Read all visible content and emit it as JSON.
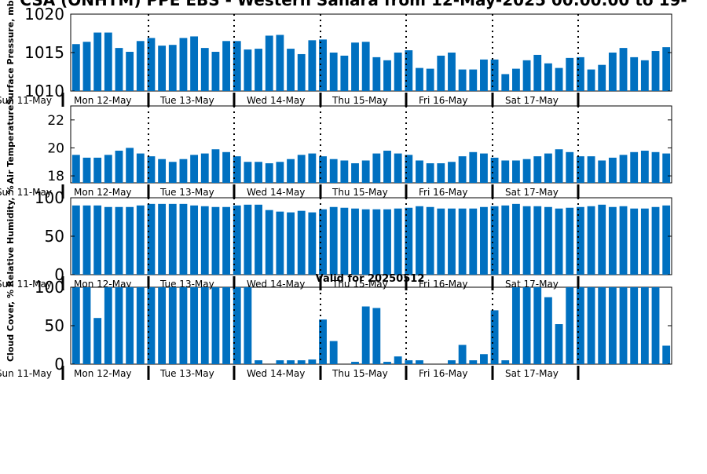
{
  "title": "CSA (ONHTM) PPE EBS  - Western Sahara from 12-May-2025 00:00:00 to 19-",
  "bottom_caption": "Valid for 20250512",
  "day_labels": [
    "Sun 11-May",
    "Mon 12-May",
    "Tue 13-May",
    "Wed 14-May",
    "Thu 15-May",
    "Fri 16-May",
    "Sat 17-May"
  ],
  "colors": {
    "bar": "#0070C0",
    "axis": "#000000",
    "background": "#ffffff"
  },
  "chart_data": [
    {
      "type": "bar",
      "ylabel": "Surface Pressure, mb",
      "ylim": [
        1010,
        1020
      ],
      "yticks": [
        1010,
        1015,
        1020
      ],
      "values": [
        1016.1,
        1016.4,
        1017.6,
        1017.6,
        1015.6,
        1015.1,
        1016.5,
        1016.9,
        1015.9,
        1016.0,
        1016.9,
        1017.1,
        1015.6,
        1015.1,
        1016.5,
        1016.5,
        1015.4,
        1015.5,
        1017.2,
        1017.3,
        1015.5,
        1014.8,
        1016.6,
        1016.7,
        1015.0,
        1014.6,
        1016.3,
        1016.4,
        1014.4,
        1014.0,
        1015.0,
        1015.3,
        1013.0,
        1012.9,
        1014.6,
        1015.0,
        1012.8,
        1012.8,
        1014.1,
        1014.1,
        1012.2,
        1012.9,
        1014.0,
        1014.7,
        1013.6,
        1013.0,
        1014.3,
        1014.4,
        1012.8,
        1013.4,
        1015.0,
        1015.6,
        1014.4,
        1014.0,
        1015.2,
        1015.7
      ]
    },
    {
      "type": "bar",
      "ylabel": "Air Temperature",
      "ylim": [
        17.5,
        23
      ],
      "yticks": [
        18,
        20,
        22
      ],
      "values": [
        19.5,
        19.3,
        19.3,
        19.5,
        19.8,
        20.0,
        19.6,
        19.4,
        19.2,
        19.0,
        19.2,
        19.5,
        19.6,
        19.9,
        19.7,
        19.4,
        19.0,
        19.0,
        18.9,
        19.0,
        19.2,
        19.5,
        19.6,
        19.4,
        19.2,
        19.1,
        18.9,
        19.1,
        19.6,
        19.8,
        19.6,
        19.5,
        19.1,
        18.9,
        18.9,
        19.0,
        19.4,
        19.7,
        19.6,
        19.3,
        19.1,
        19.1,
        19.2,
        19.4,
        19.6,
        19.9,
        19.7,
        19.4,
        19.4,
        19.1,
        19.3,
        19.5,
        19.7,
        19.8,
        19.7,
        19.6
      ]
    },
    {
      "type": "bar",
      "ylabel": "Relative Humidity, %",
      "ylim": [
        0,
        100
      ],
      "yticks": [
        0,
        50,
        100
      ],
      "values": [
        90,
        90,
        90,
        88,
        88,
        88,
        90,
        92,
        92,
        92,
        92,
        90,
        89,
        88,
        88,
        90,
        91,
        91,
        84,
        82,
        81,
        83,
        81,
        85,
        88,
        87,
        86,
        85,
        85,
        85,
        86,
        87,
        89,
        88,
        86,
        86,
        86,
        86,
        88,
        89,
        90,
        92,
        89,
        89,
        88,
        86,
        87,
        88,
        89,
        91,
        88,
        89,
        86,
        86,
        88,
        90
      ]
    },
    {
      "type": "bar",
      "ylabel": "Cloud Cover, %",
      "ylim": [
        0,
        100
      ],
      "yticks": [
        0,
        50,
        100
      ],
      "values": [
        100,
        100,
        60,
        100,
        100,
        100,
        100,
        100,
        100,
        100,
        100,
        100,
        100,
        100,
        100,
        100,
        100,
        5,
        0,
        5,
        5,
        5,
        6,
        58,
        30,
        0,
        3,
        75,
        73,
        3,
        10,
        5,
        5,
        0,
        0,
        5,
        25,
        5,
        13,
        70,
        5,
        100,
        100,
        100,
        87,
        52,
        100,
        100,
        100,
        100,
        100,
        100,
        100,
        100,
        100,
        24
      ]
    }
  ]
}
